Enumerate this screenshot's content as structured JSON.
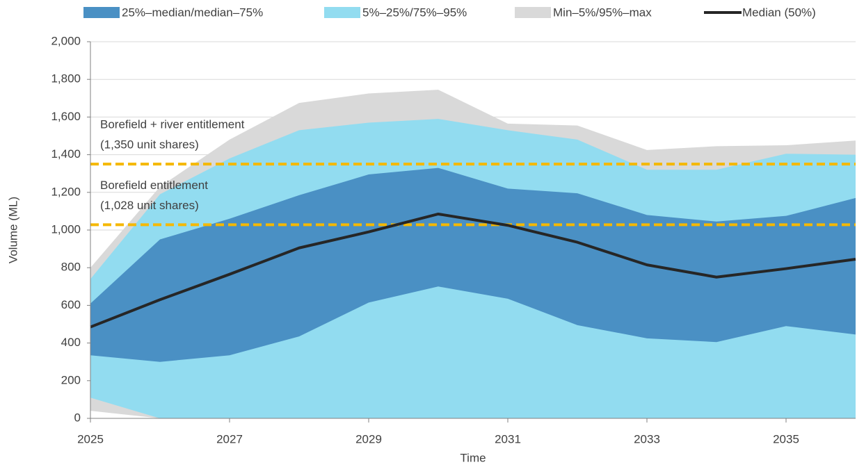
{
  "chart_data": {
    "type": "fan",
    "x_label": "Time",
    "y_label": "Volume (ML)",
    "x": [
      2025,
      2026,
      2027,
      2028,
      2029,
      2030,
      2031,
      2032,
      2033,
      2034,
      2035,
      2036
    ],
    "xlim": [
      2025,
      2036
    ],
    "xticks": [
      2025,
      2027,
      2029,
      2031,
      2033,
      2035
    ],
    "ylim": [
      0,
      2000
    ],
    "yticks": [
      0,
      200,
      400,
      600,
      800,
      {
        "value": 1000,
        "label": "1,000"
      },
      {
        "value": 1200,
        "label": "1,200"
      },
      {
        "value": 1400,
        "label": "1,400"
      },
      {
        "value": 1600,
        "label": "1,600"
      },
      {
        "value": 1800,
        "label": "1,800"
      },
      {
        "value": 2000,
        "label": "2,000"
      }
    ],
    "grid": true,
    "series": [
      {
        "name": "25%–median/median–75%",
        "color": "#4a90c4",
        "lower": [
          335,
          300,
          335,
          435,
          615,
          700,
          635,
          495,
          425,
          405,
          490,
          445
        ],
        "upper": [
          610,
          950,
          1060,
          1185,
          1295,
          1330,
          1220,
          1195,
          1080,
          1045,
          1075,
          1170
        ]
      },
      {
        "name": "5%–25%/75%–95%",
        "color": "#92dcf0",
        "lower": [
          110,
          0,
          0,
          0,
          0,
          0,
          0,
          0,
          0,
          0,
          0,
          0
        ],
        "upper": [
          740,
          1190,
          1380,
          1530,
          1570,
          1590,
          1530,
          1480,
          1320,
          1320,
          1405,
          1400
        ]
      },
      {
        "name": "Min–5%/95%–max",
        "color": "#d9d9d9",
        "lower": [
          40,
          0,
          0,
          0,
          0,
          0,
          0,
          0,
          0,
          0,
          0,
          0
        ],
        "upper": [
          800,
          1230,
          1480,
          1675,
          1725,
          1745,
          1565,
          1555,
          1425,
          1445,
          1450,
          1475
        ]
      },
      {
        "name": "Median (50%)",
        "color": "#262626",
        "values": [
          485,
          630,
          765,
          905,
          990,
          1085,
          1025,
          935,
          815,
          750,
          795,
          845
        ]
      }
    ],
    "reference_lines": [
      {
        "value": 1350,
        "label": "Borefield + river entitlement",
        "sublabel": "(1,350 unit shares)",
        "color": "#f5b800"
      },
      {
        "value": 1028,
        "label": "Borefield entitlement",
        "sublabel": "(1,028 unit shares)",
        "color": "#f5b800"
      }
    ]
  }
}
